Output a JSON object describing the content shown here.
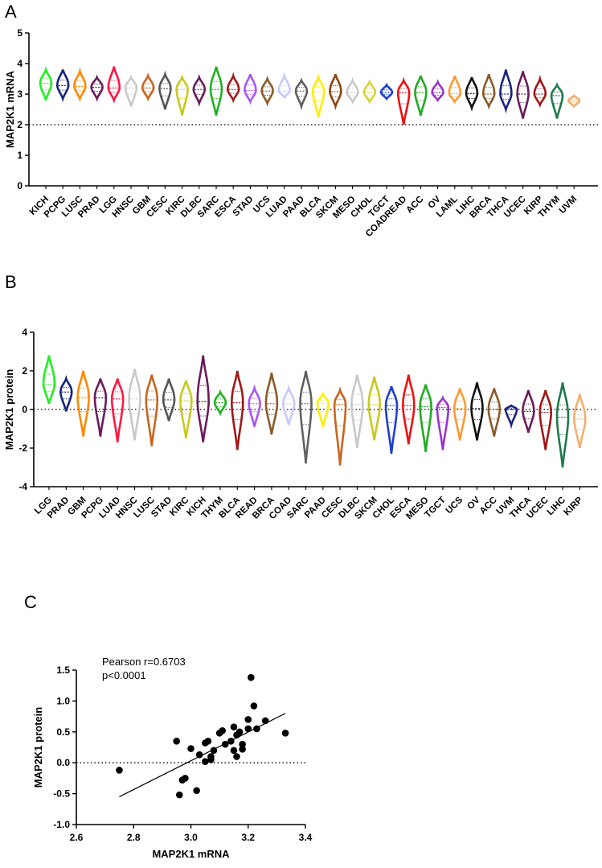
{
  "figure": {
    "panels": [
      "A",
      "B",
      "C"
    ]
  },
  "chart_data": [
    {
      "panel": "A",
      "type": "violin",
      "ylabel": "MAP2K1 mRNA",
      "ylim": [
        0,
        5
      ],
      "yticks": [
        0,
        1,
        2,
        3,
        4,
        5
      ],
      "reference_line": {
        "y": 2,
        "style": "dotted"
      },
      "categories": [
        "KICH",
        "PCPG",
        "LUSC",
        "PRAD",
        "LGG",
        "HNSC",
        "GBM",
        "CESC",
        "KIRC",
        "DLBC",
        "SARC",
        "ESCA",
        "STAD",
        "UCS",
        "LUAD",
        "PAAD",
        "BLCA",
        "SKCM",
        "MESO",
        "CHOL",
        "TGCT",
        "COADREAD",
        "ACC",
        "OV",
        "LAML",
        "LIHC",
        "BRCA",
        "THCA",
        "UCEC",
        "KIRP",
        "THYM",
        "UVM"
      ],
      "colors": [
        "#22ee22",
        "#1a237e",
        "#ff8800",
        "#6a1b5a",
        "#ff1744",
        "#c8c8c8",
        "#c8641e",
        "#555555",
        "#c8c820",
        "#6a1b5a",
        "#22b022",
        "#a01818",
        "#a855f7",
        "#8b5a2b",
        "#c8c8ff",
        "#606060",
        "#ffee00",
        "#8b4513",
        "#c8c8c8",
        "#d4d43a",
        "#1e3fd0",
        "#ee1111",
        "#22aa22",
        "#9933cc",
        "#ff9933",
        "#111111",
        "#8b5a2b",
        "#1a237e",
        "#6a1b5a",
        "#a01818",
        "#1e7a4a",
        "#f0b070"
      ],
      "medians": [
        3.35,
        3.28,
        3.25,
        3.22,
        3.2,
        3.2,
        3.2,
        3.18,
        3.15,
        3.15,
        3.15,
        3.15,
        3.12,
        3.1,
        3.1,
        3.1,
        3.08,
        3.08,
        3.05,
        3.05,
        3.05,
        3.05,
        3.05,
        3.05,
        3.02,
        3.02,
        3.0,
        3.0,
        3.0,
        3.0,
        2.95,
        2.78
      ],
      "mins": [
        2.8,
        2.85,
        2.85,
        2.85,
        2.8,
        2.6,
        2.85,
        2.5,
        2.3,
        2.7,
        2.3,
        2.8,
        2.75,
        2.7,
        2.9,
        2.6,
        2.25,
        2.6,
        2.75,
        2.75,
        2.85,
        2.0,
        2.3,
        2.8,
        2.75,
        2.55,
        2.6,
        2.5,
        2.2,
        2.65,
        2.2,
        2.6
      ],
      "maxs": [
        3.8,
        3.8,
        3.75,
        3.55,
        3.9,
        3.55,
        3.6,
        3.65,
        3.55,
        3.55,
        3.9,
        3.6,
        3.65,
        3.5,
        3.6,
        3.45,
        3.55,
        3.65,
        3.45,
        3.4,
        3.3,
        3.45,
        3.6,
        3.4,
        3.6,
        3.55,
        3.65,
        3.8,
        3.75,
        3.5,
        3.3,
        2.95
      ]
    },
    {
      "panel": "B",
      "type": "violin",
      "ylabel": "MAP2K1 protein",
      "ylim": [
        -4,
        4
      ],
      "yticks": [
        -4,
        -2,
        0,
        2,
        4
      ],
      "reference_line": {
        "y": 0,
        "style": "dotted"
      },
      "categories": [
        "LGG",
        "PRAD",
        "GBM",
        "PCPG",
        "LUAD",
        "HNSC",
        "LUSC",
        "STAD",
        "KIRC",
        "KICH",
        "THYM",
        "BLCA",
        "READ",
        "BRCA",
        "COAD",
        "SARC",
        "PAAD",
        "CESC",
        "DLBC",
        "SKCM",
        "CHOL",
        "ESCA",
        "MESO",
        "TGCT",
        "UCS",
        "OV",
        "ACC",
        "UVM",
        "THCA",
        "UCEC",
        "LIHC",
        "KIRP"
      ],
      "colors": [
        "#22ee22",
        "#1a237e",
        "#ff8800",
        "#6a1b5a",
        "#ff1744",
        "#c8c8c8",
        "#c8641e",
        "#555555",
        "#c8c820",
        "#6a1b5a",
        "#22b022",
        "#a01818",
        "#a855f7",
        "#8b5a2b",
        "#c8c8ff",
        "#606060",
        "#ffee00",
        "#c8641e",
        "#c8c8c8",
        "#c8c820",
        "#1e3fd0",
        "#ee1111",
        "#22aa22",
        "#9933cc",
        "#ff9933",
        "#111111",
        "#8b5a2b",
        "#1a237e",
        "#6a1b5a",
        "#a01818",
        "#1e7a4a",
        "#f0b070"
      ],
      "medians": [
        1.3,
        0.9,
        0.6,
        0.6,
        0.55,
        0.55,
        0.5,
        0.5,
        0.45,
        0.4,
        0.35,
        0.35,
        0.3,
        0.3,
        0.3,
        0.3,
        0.3,
        0.25,
        0.25,
        0.25,
        0.2,
        0.2,
        0.15,
        0.1,
        0.05,
        0.05,
        0.0,
        0.0,
        -0.1,
        -0.15,
        -0.4,
        -0.5
      ],
      "mins": [
        0.3,
        -0.1,
        -1.4,
        -1.4,
        -1.7,
        -1.6,
        -1.9,
        -0.6,
        -1.5,
        -1.7,
        -0.2,
        -2.1,
        -0.9,
        -1.3,
        -0.8,
        -2.8,
        -0.9,
        -2.9,
        -2.0,
        -1.6,
        -2.3,
        -1.8,
        -2.2,
        -2.1,
        -1.6,
        -1.6,
        -1.4,
        -0.8,
        -1.2,
        -2.1,
        -3.0,
        -2.0
      ],
      "maxs": [
        2.8,
        1.6,
        2.0,
        1.6,
        1.6,
        2.1,
        1.8,
        1.6,
        1.5,
        2.8,
        0.9,
        2.0,
        1.1,
        1.9,
        1.1,
        2.0,
        0.8,
        1.0,
        1.8,
        1.7,
        1.2,
        1.8,
        1.3,
        0.6,
        1.1,
        1.4,
        1.1,
        0.2,
        1.0,
        1.0,
        1.4,
        0.8
      ]
    },
    {
      "panel": "C",
      "type": "scatter",
      "xlabel": "MAP2K1 mRNA",
      "ylabel": "MAP2K1 protein",
      "xlim": [
        2.6,
        3.4
      ],
      "ylim": [
        -1.0,
        1.5
      ],
      "xticks": [
        2.6,
        2.8,
        3.0,
        3.2,
        3.4
      ],
      "yticks": [
        -1.0,
        -0.5,
        0.0,
        0.5,
        1.0,
        1.5
      ],
      "reference_line": {
        "y": 0,
        "style": "dotted"
      },
      "annotation": [
        "Pearson r=0.6703",
        "p<0.0001"
      ],
      "fit_line": {
        "x": [
          2.75,
          3.33
        ],
        "y": [
          -0.55,
          0.8
        ]
      },
      "points": [
        {
          "x": 2.75,
          "y": -0.12
        },
        {
          "x": 2.95,
          "y": 0.35
        },
        {
          "x": 2.96,
          "y": -0.52
        },
        {
          "x": 2.97,
          "y": -0.28
        },
        {
          "x": 2.98,
          "y": -0.25
        },
        {
          "x": 3.0,
          "y": 0.23
        },
        {
          "x": 3.02,
          "y": -0.45
        },
        {
          "x": 3.03,
          "y": 0.13
        },
        {
          "x": 3.05,
          "y": 0.32
        },
        {
          "x": 3.05,
          "y": 0.02
        },
        {
          "x": 3.06,
          "y": 0.35
        },
        {
          "x": 3.07,
          "y": 0.05
        },
        {
          "x": 3.07,
          "y": 0.1
        },
        {
          "x": 3.08,
          "y": 0.2
        },
        {
          "x": 3.1,
          "y": 0.48
        },
        {
          "x": 3.11,
          "y": 0.52
        },
        {
          "x": 3.12,
          "y": 0.3
        },
        {
          "x": 3.14,
          "y": 0.35
        },
        {
          "x": 3.15,
          "y": 0.58
        },
        {
          "x": 3.15,
          "y": 0.2
        },
        {
          "x": 3.16,
          "y": 0.1
        },
        {
          "x": 3.16,
          "y": 0.45
        },
        {
          "x": 3.17,
          "y": 0.5
        },
        {
          "x": 3.18,
          "y": 0.22
        },
        {
          "x": 3.18,
          "y": 0.3
        },
        {
          "x": 3.2,
          "y": 0.55
        },
        {
          "x": 3.2,
          "y": 0.7
        },
        {
          "x": 3.21,
          "y": 1.38
        },
        {
          "x": 3.22,
          "y": 0.92
        },
        {
          "x": 3.23,
          "y": 0.55
        },
        {
          "x": 3.26,
          "y": 0.68
        },
        {
          "x": 3.33,
          "y": 0.48
        }
      ]
    }
  ]
}
